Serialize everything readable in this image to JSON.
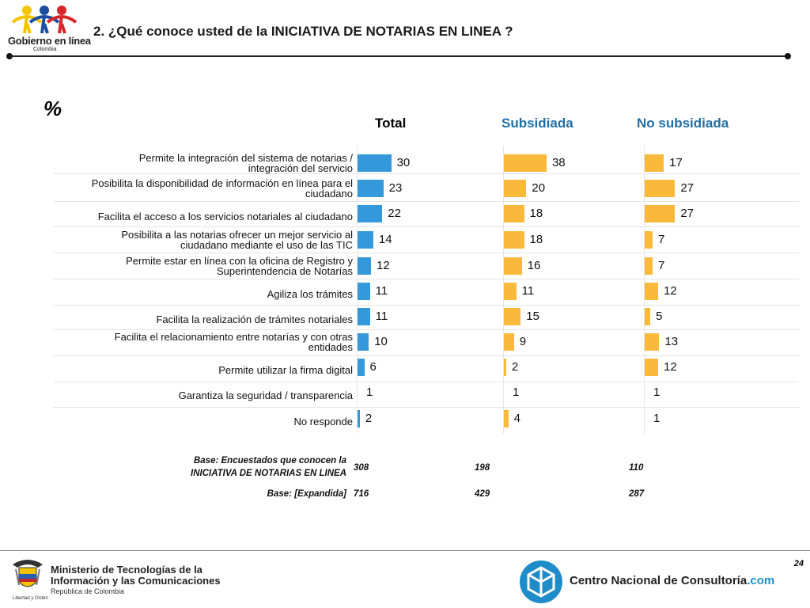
{
  "header": {
    "title": "2. ¿Qué conoce usted de la INICIATIVA DE NOTARIAS EN LINEA ?",
    "logo": {
      "name": "Gobierno en línea",
      "country": "Colombia"
    }
  },
  "chart_data": {
    "type": "bar",
    "orientation": "horizontal",
    "unit_label": "%",
    "categories": [
      "Permite la integración del sistema de notarias / integración del servicio",
      "Posibilita la disponibilidad de información en línea para el ciudadano",
      "Facilita el acceso a los servicios notariales al ciudadano",
      "Posibilita a las notarias ofrecer un mejor servicio al ciudadano mediante el uso de las TIC",
      "Permite estar en línea con la oficina de Registro y Superintendencia de Notarías",
      "Agiliza los trámites",
      "Facilita la realización de trámites notariales",
      "Facilita el relacionamiento entre notarías y con otras entidades",
      "Permite utilizar la firma digital",
      "Garantiza la seguridad / transparencia",
      "No responde"
    ],
    "category_lines": [
      [
        "Permite la integración del sistema de notarias /",
        "integración del servicio"
      ],
      [
        "Posibilita la disponibilidad de información en línea para el",
        "ciudadano"
      ],
      [
        "Facilita el acceso a los servicios notariales al ciudadano"
      ],
      [
        "Posibilita a las notarias ofrecer un mejor servicio al",
        "ciudadano mediante el uso de las TIC"
      ],
      [
        "Permite estar en línea con la oficina de Registro y",
        "Superintendencia de Notarías"
      ],
      [
        "Agiliza los trámites"
      ],
      [
        "Facilita la realización de trámites notariales"
      ],
      [
        "Facilita el relacionamiento entre notarías y con otras",
        "entidades"
      ],
      [
        "Permite utilizar la firma digital"
      ],
      [
        "Garantiza la seguridad / transparencia"
      ],
      [
        "No responde"
      ]
    ],
    "series": [
      {
        "name": "Total",
        "color": "#3399db",
        "values": [
          30,
          23,
          22,
          14,
          12,
          11,
          11,
          10,
          6,
          1,
          2
        ]
      },
      {
        "name": "Subsidiada",
        "color": "#fbb93b",
        "values": [
          38,
          20,
          18,
          18,
          16,
          11,
          15,
          9,
          2,
          1,
          4
        ]
      },
      {
        "name": "No subsidiada",
        "color": "#fbb93b",
        "values": [
          17,
          27,
          27,
          7,
          7,
          12,
          5,
          13,
          12,
          1,
          1
        ]
      }
    ],
    "header_colors": [
      "#000000",
      "#1f6fa8",
      "#1f6fa8"
    ]
  },
  "bases": {
    "row1_label_line1": "Base: Encuestados que conocen la",
    "row1_label_line2": "INICIATIVA DE NOTARIAS EN LINEA",
    "row1_values": [
      "308",
      "198",
      "110"
    ],
    "row2_label": "Base: [Expandida]",
    "row2_values": [
      "716",
      "429",
      "287"
    ]
  },
  "footer": {
    "ministry_line1": "Ministerio de Tecnologías de la",
    "ministry_line2": "Información y las Comunicaciones",
    "ministry_line3": "República de Colombia",
    "motto": "Libertad y Orden",
    "cnc_name": "Centro Nacional de Consultoría",
    "cnc_suffix": ".com",
    "page_number": "24"
  }
}
